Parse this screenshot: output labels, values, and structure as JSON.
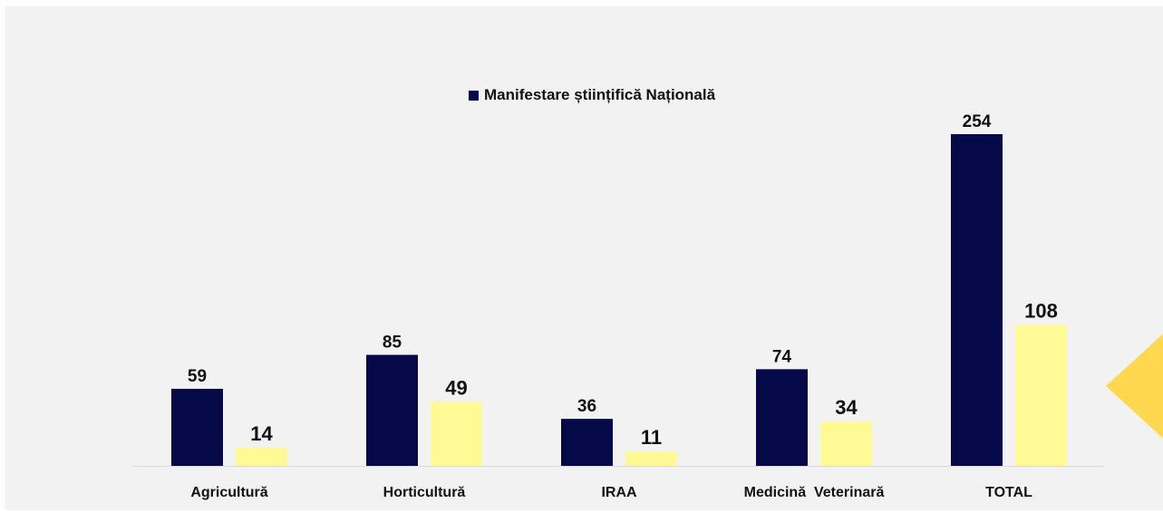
{
  "chart_data": {
    "type": "bar",
    "categories": [
      "Agricultură",
      "Horticultură",
      "IRAA",
      "Medicină  Veterinară",
      "TOTAL"
    ],
    "series": [
      {
        "name": "Manifestare științifică Națională",
        "values": [
          59,
          85,
          36,
          74,
          254
        ],
        "color": "#050947"
      },
      {
        "values": [
          14,
          49,
          11,
          34,
          108
        ],
        "color": "#fffa96"
      }
    ],
    "legend": {
      "position": "top",
      "label": "Manifestare științifică Națională"
    },
    "ylim": [
      0,
      254
    ],
    "grid": false
  },
  "colors": {
    "background": "#f2f2f2",
    "axis": "#d9d9d9",
    "decoration": "#ffd84f"
  }
}
